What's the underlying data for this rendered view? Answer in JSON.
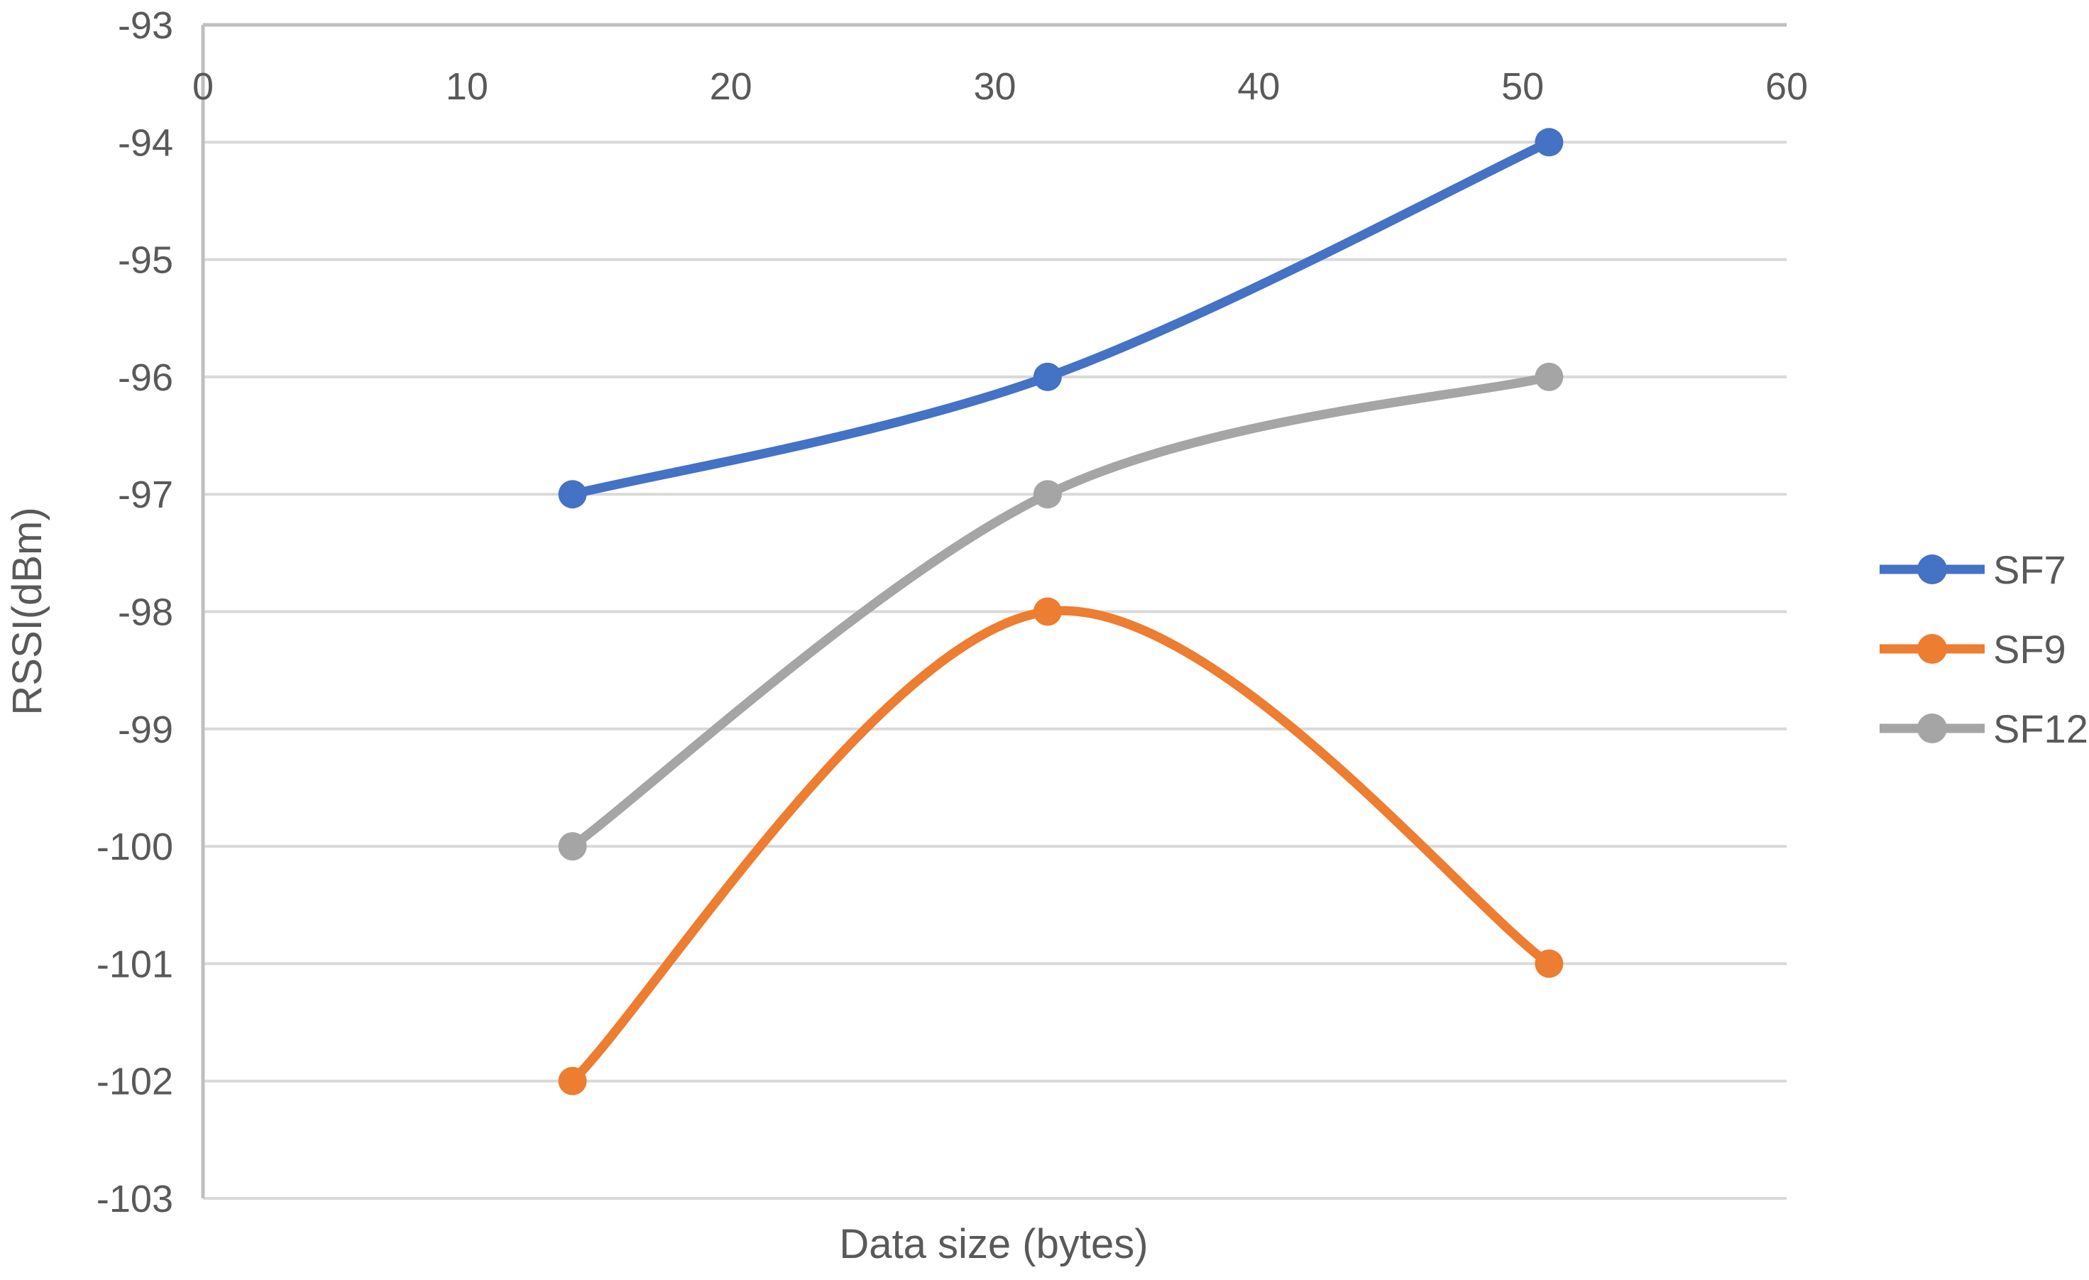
{
  "chart_data": {
    "type": "line",
    "title": "",
    "xlabel": "Data size (bytes)",
    "ylabel": "RSSI(dBm)",
    "smooth_lines": true,
    "grid": {
      "horizontal": true,
      "vertical": false
    },
    "x_axis": {
      "min": 0,
      "max": 60,
      "tick_step": 10,
      "ticks": [
        0,
        10,
        20,
        30,
        40,
        50,
        60
      ],
      "tick_labels": [
        "0",
        "10",
        "20",
        "30",
        "40",
        "50",
        "60"
      ],
      "labels_position": "top-inside"
    },
    "y_axis": {
      "min": -103,
      "max": -93,
      "tick_step": 1,
      "ticks": [
        -93,
        -94,
        -95,
        -96,
        -97,
        -98,
        -99,
        -100,
        -101,
        -102,
        -103
      ],
      "tick_labels": [
        "-93",
        "-94",
        "-95",
        "-96",
        "-97",
        "-98",
        "-99",
        "-100",
        "-101",
        "-102",
        "-103"
      ],
      "labels_position": "left-outside"
    },
    "series": [
      {
        "name": "SF7",
        "color": "#4472C4",
        "x": [
          14,
          32,
          51
        ],
        "y": [
          -97,
          -96,
          -94
        ]
      },
      {
        "name": "SF9",
        "color": "#ED7D31",
        "x": [
          14,
          32,
          51
        ],
        "y": [
          -102,
          -98,
          -101
        ]
      },
      {
        "name": "SF12",
        "color": "#A5A5A5",
        "x": [
          14,
          32,
          51
        ],
        "y": [
          -100,
          -97,
          -96
        ]
      }
    ],
    "legend": {
      "position": "right",
      "entries": [
        "SF7",
        "SF9",
        "SF12"
      ]
    },
    "colors": {
      "gridline": "#D9D9D9",
      "axis_line": "#BFBFBF",
      "text": "#595959",
      "background": "#FFFFFF"
    }
  }
}
